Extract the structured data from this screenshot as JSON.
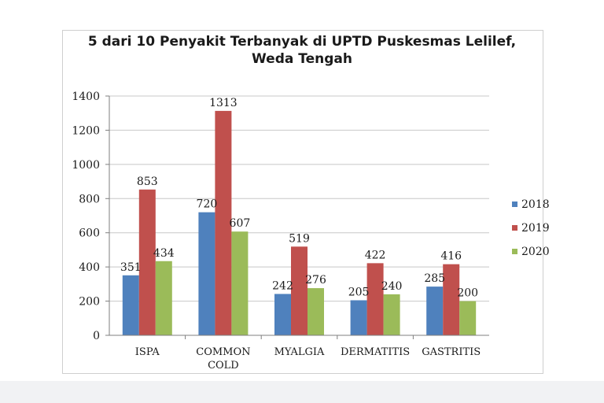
{
  "chart_data": {
    "type": "bar",
    "title_line1": "5 dari 10 Penyakit Terbanyak di UPTD Puskesmas Lelilef,",
    "title_line2": "Weda Tengah",
    "categories": [
      "ISPA",
      "COMMON COLD",
      "MYALGIA",
      "DERMATITIS",
      "GASTRITIS"
    ],
    "category_lines": [
      [
        "ISPA"
      ],
      [
        "COMMON",
        "COLD"
      ],
      [
        "MYALGIA"
      ],
      [
        "DERMATITIS"
      ],
      [
        "GASTRITIS"
      ]
    ],
    "series": [
      {
        "name": "2018",
        "color": "#4f81bd",
        "values": [
          351,
          720,
          242,
          205,
          285
        ]
      },
      {
        "name": "2019",
        "color": "#c0504d",
        "values": [
          853,
          1313,
          519,
          422,
          416
        ]
      },
      {
        "name": "2020",
        "color": "#9bbb59",
        "values": [
          434,
          607,
          276,
          240,
          200
        ]
      }
    ],
    "ylim": [
      0,
      1400
    ],
    "yticks": [
      0,
      200,
      400,
      600,
      800,
      1000,
      1200,
      1400
    ],
    "grid": true,
    "legend_position": "right"
  }
}
